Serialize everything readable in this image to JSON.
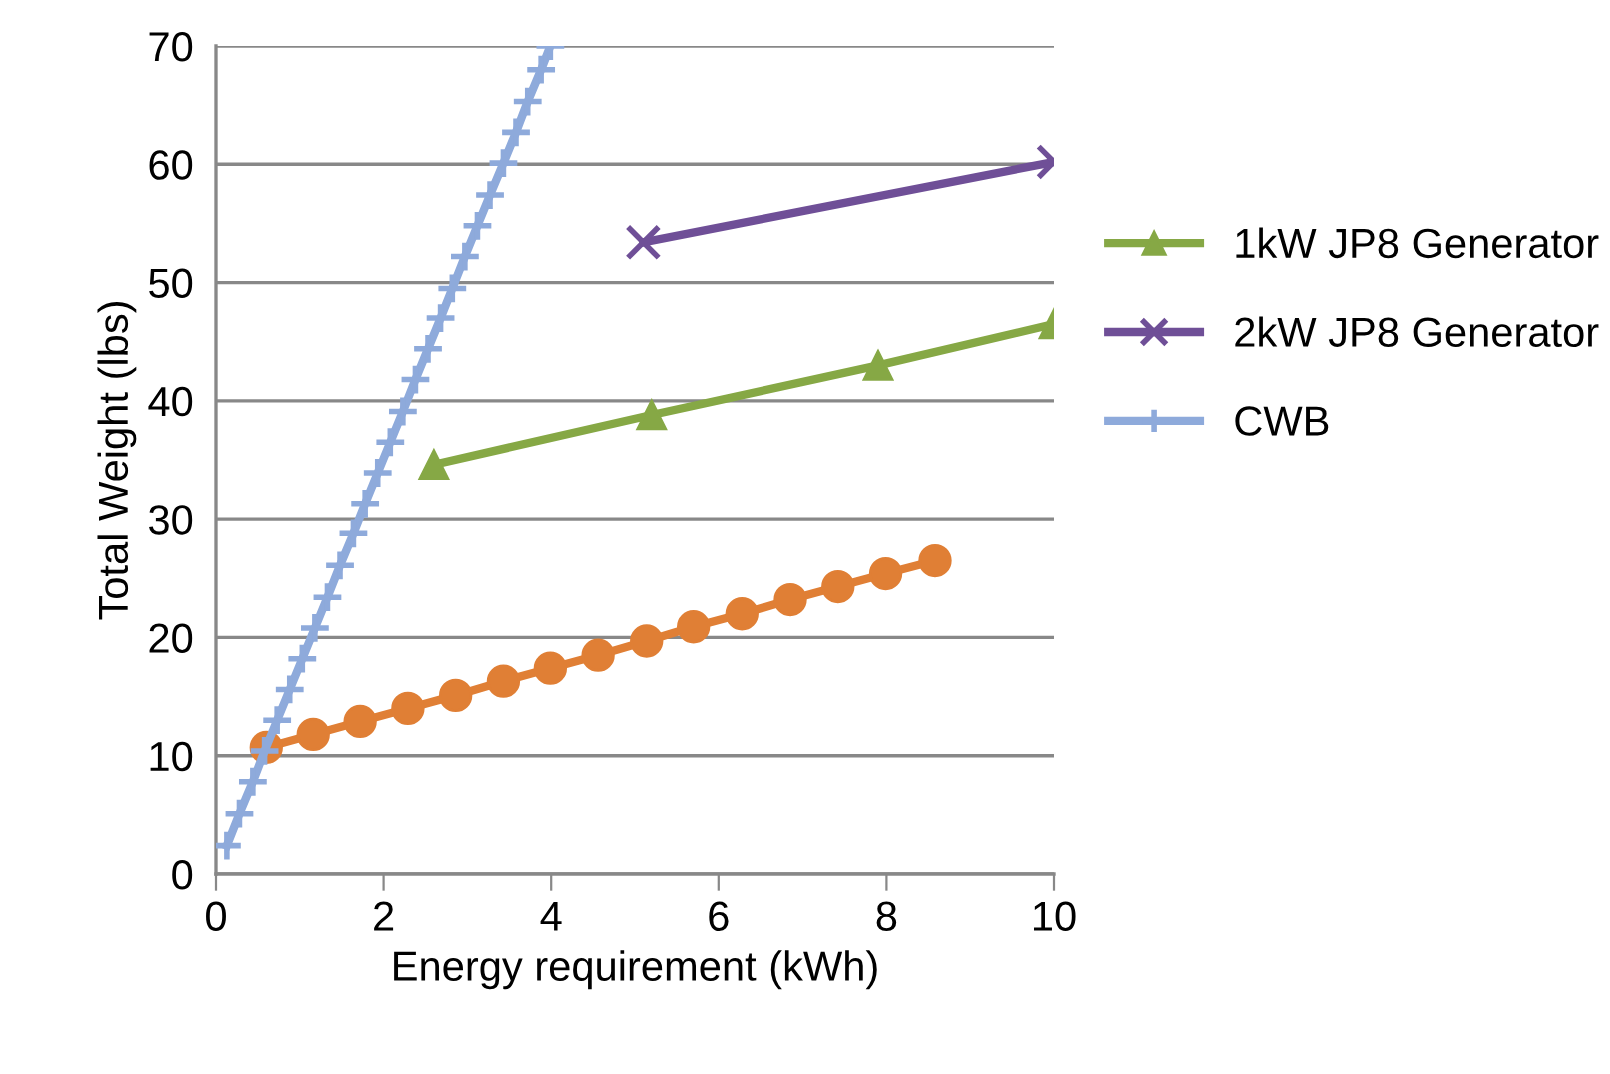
{
  "chart_data": {
    "type": "line",
    "xlabel": "Energy requirement (kWh)",
    "ylabel": "Total Weight (lbs)",
    "xlim": [
      0,
      10
    ],
    "xticks": [
      0,
      2,
      4,
      6,
      8,
      10
    ],
    "ylim": [
      0,
      70
    ],
    "yticks": [
      0,
      10,
      20,
      30,
      40,
      50,
      60,
      70
    ],
    "grid": "y",
    "legend": "right",
    "line_style": "solid",
    "series": [
      {
        "color": "#e07f35",
        "marker": "circle",
        "x": [
          0.6,
          1.16,
          1.72,
          2.29,
          2.86,
          3.43,
          3.99,
          4.56,
          5.14,
          5.7,
          6.28,
          6.85,
          7.42,
          7.99,
          8.58
        ],
        "values": [
          10.7,
          11.8,
          12.9,
          14.0,
          15.1,
          16.3,
          17.4,
          18.5,
          19.7,
          20.9,
          22.0,
          23.2,
          24.3,
          25.4,
          26.5
        ]
      },
      {
        "name": "1kW JP8 Generator",
        "color": "#86a845",
        "marker": "triangle",
        "x": [
          2.6,
          5.2,
          7.9,
          10
        ],
        "values": [
          34.6,
          38.8,
          43.0,
          46.5
        ]
      },
      {
        "name": "2kW JP8 Generator",
        "color": "#6f4f97",
        "marker": "cross",
        "x": [
          5.1,
          10
        ],
        "values": [
          53.4,
          60.2
        ]
      },
      {
        "name": "CWB",
        "color": "#8eaadb",
        "marker": "plus",
        "x": [
          0.13,
          0.28,
          0.44,
          0.58,
          0.73,
          0.88,
          1.03,
          1.18,
          1.33,
          1.48,
          1.64,
          1.78,
          1.93,
          2.08,
          2.23,
          2.38,
          2.53,
          2.68,
          2.82,
          2.97,
          3.12,
          3.27,
          3.43,
          3.58,
          3.72,
          3.88,
          3.99
        ],
        "values": [
          2.4,
          5.1,
          7.8,
          10.4,
          13.0,
          15.6,
          18.2,
          20.8,
          23.4,
          26.1,
          28.8,
          31.3,
          33.9,
          36.5,
          39.1,
          41.8,
          44.4,
          47.0,
          49.5,
          52.2,
          54.8,
          57.4,
          60.1,
          62.7,
          65.3,
          68.0,
          70
        ]
      }
    ]
  }
}
